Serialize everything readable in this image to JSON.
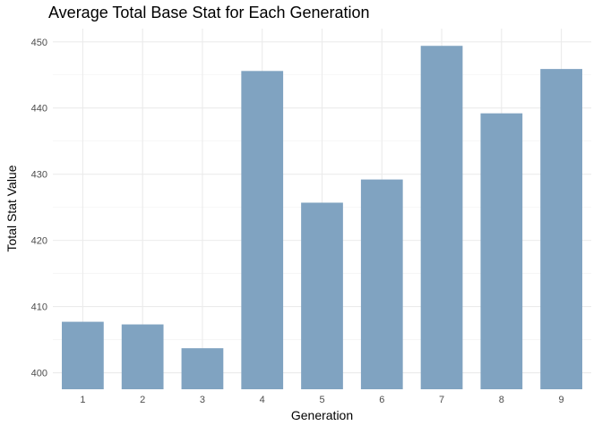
{
  "chart_data": {
    "type": "bar",
    "title": "Average Total Base Stat for Each Generation",
    "xlabel": "Generation",
    "ylabel": "Total Stat Value",
    "categories": [
      "1",
      "2",
      "3",
      "4",
      "5",
      "6",
      "7",
      "8",
      "9"
    ],
    "values": [
      407.7,
      407.3,
      403.7,
      445.6,
      425.7,
      429.2,
      449.4,
      439.2,
      445.9
    ],
    "ylim": [
      397.5,
      452
    ],
    "yticks": [
      400,
      410,
      420,
      430,
      440,
      450
    ],
    "grid": true,
    "bar_color": "#80a3c1",
    "legend": "none"
  }
}
